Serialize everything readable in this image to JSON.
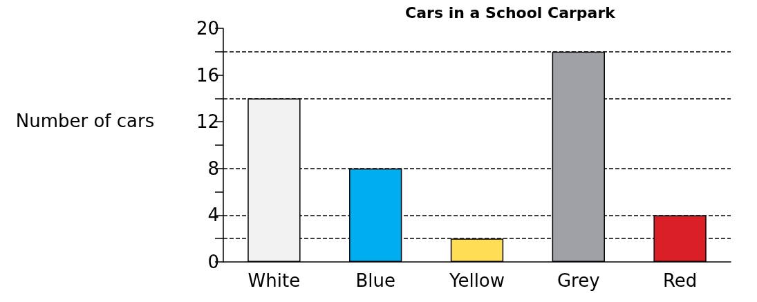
{
  "chart_data": {
    "type": "bar",
    "title": "Cars in a School Carpark",
    "ylabel": "Number of cars",
    "categories": [
      "White",
      "Blue",
      "Yellow",
      "Grey",
      "Red"
    ],
    "values": [
      14,
      8,
      2,
      18,
      4
    ],
    "colors": [
      "#f2f2f2",
      "#00aeef",
      "#ffdd55",
      "#a0a1a5",
      "#da1f26"
    ],
    "ylim": [
      0,
      20
    ],
    "yticks": [
      0,
      {
        "value": 2,
        "label": null
      },
      4,
      {
        "value": 6,
        "label": null
      },
      8,
      {
        "value": 10,
        "label": null
      },
      12,
      {
        "value": 14,
        "label": null
      },
      16,
      {
        "value": 18,
        "label": null
      },
      20
    ],
    "ref_lines": [
      {
        "axis": "y",
        "value": 18,
        "line_style": "dashed"
      },
      {
        "axis": "y",
        "value": 14,
        "line_style": "dashed"
      },
      {
        "axis": "y",
        "value": 8,
        "line_style": "dashed"
      },
      {
        "axis": "y",
        "value": 4,
        "line_style": "dashed"
      },
      {
        "axis": "y",
        "value": 2,
        "line_style": "dashed"
      }
    ],
    "grid": false
  }
}
